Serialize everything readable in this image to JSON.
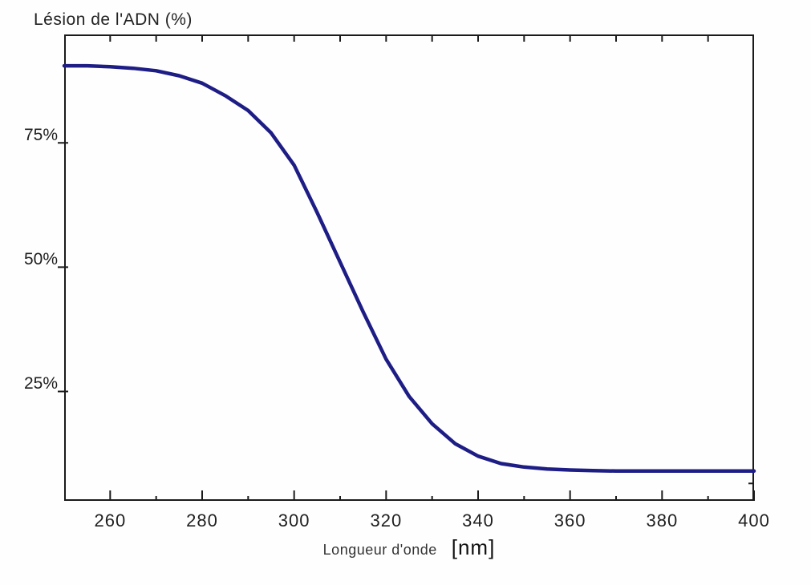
{
  "title": "Lésion de l'ADN (%)",
  "x_axis": {
    "caption": "Longueur d'onde",
    "unit": "[nm]"
  },
  "chart_data": {
    "type": "line",
    "title": "Lésion de l'ADN (%)",
    "xlabel": "Longueur d'onde [nm]",
    "ylabel": "Lésion de l'ADN (%)",
    "xlim": [
      250,
      400
    ],
    "ylim": [
      3,
      96.8
    ],
    "grid": false,
    "legend_position": "none",
    "axis_color": "#1a1a1a",
    "line_color": "#1d1d85",
    "x_ticks_major": [
      260,
      280,
      300,
      320,
      340,
      360,
      380,
      400
    ],
    "x_tick_labels": [
      "260",
      "280",
      "300",
      "320",
      "340",
      "360",
      "380",
      "400"
    ],
    "x_ticks_minor": [
      270,
      290,
      310,
      330,
      350,
      370,
      390
    ],
    "x_ticks_top": [
      260,
      270,
      280,
      290,
      300,
      310,
      320,
      330,
      340,
      350,
      360,
      370,
      380,
      390
    ],
    "y_ticks": [
      75,
      50,
      25
    ],
    "y_tick_labels": [
      "75%",
      "50%",
      "25%"
    ],
    "y_tick_right_minor": [
      6.5
    ],
    "series": [
      {
        "name": "Lésion de l'ADN",
        "x": [
          250,
          255,
          260,
          265,
          270,
          275,
          280,
          285,
          290,
          295,
          300,
          305,
          310,
          315,
          320,
          325,
          330,
          335,
          340,
          345,
          350,
          355,
          360,
          365,
          370,
          375,
          380,
          385,
          390,
          395,
          400
        ],
        "values": [
          90.5,
          90.5,
          90.3,
          90.0,
          89.5,
          88.5,
          87.0,
          84.5,
          81.5,
          77.0,
          70.5,
          61.0,
          51.0,
          41.0,
          31.5,
          24.0,
          18.5,
          14.5,
          12.0,
          10.5,
          9.8,
          9.4,
          9.2,
          9.1,
          9.0,
          9.0,
          9.0,
          9.0,
          9.0,
          9.0,
          9.0
        ]
      }
    ]
  }
}
